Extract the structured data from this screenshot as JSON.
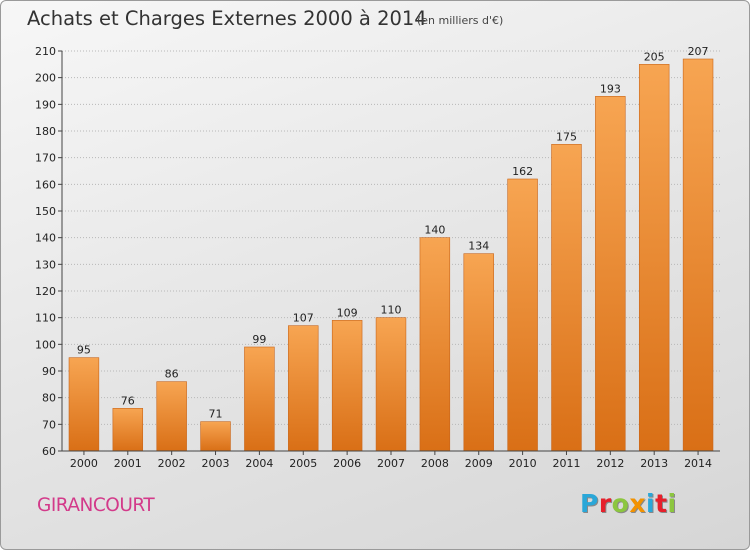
{
  "title": "Achats et Charges Externes 2000 à 2014",
  "subtitle": "(en milliers d'€)",
  "commune": "GIRANCOURT",
  "logo": {
    "text": "Proxiti",
    "letters": [
      {
        "ch": "P",
        "color": "#2aa7d8"
      },
      {
        "ch": "r",
        "color": "#e6202b"
      },
      {
        "ch": "o",
        "color": "#8cc63f"
      },
      {
        "ch": "x",
        "color": "#f29200"
      },
      {
        "ch": "i",
        "color": "#2aa7d8"
      },
      {
        "ch": "t",
        "color": "#e6202b"
      },
      {
        "ch": "i",
        "color": "#8cc63f"
      }
    ]
  },
  "colors": {
    "bar_light": "#f7a552",
    "bar_dark": "#d96f16",
    "grid": "#b8b8b8",
    "axis": "#444444"
  },
  "chart_data": {
    "type": "bar",
    "title": "Achats et Charges Externes 2000 à 2014",
    "subtitle": "(en milliers d'€)",
    "xlabel": "",
    "ylabel": "",
    "ylim": [
      60,
      210
    ],
    "yticks": [
      60,
      70,
      80,
      90,
      100,
      110,
      120,
      130,
      140,
      150,
      160,
      170,
      180,
      190,
      200,
      210
    ],
    "grid": true,
    "categories": [
      "2000",
      "2001",
      "2002",
      "2003",
      "2004",
      "2005",
      "2006",
      "2007",
      "2008",
      "2009",
      "2010",
      "2011",
      "2012",
      "2013",
      "2014"
    ],
    "values": [
      95,
      76,
      86,
      71,
      99,
      107,
      109,
      110,
      140,
      134,
      162,
      175,
      193,
      205,
      207
    ]
  }
}
